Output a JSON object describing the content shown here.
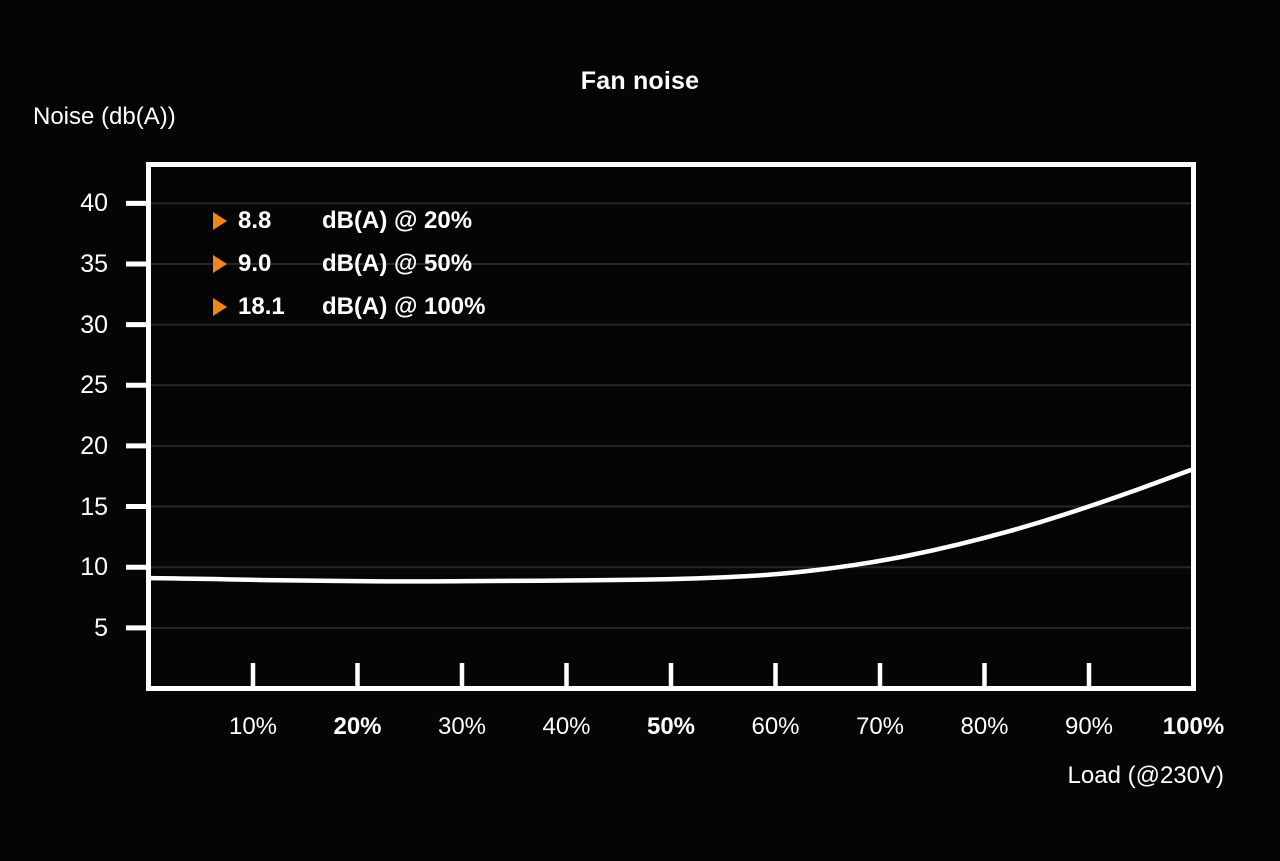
{
  "chart_title": "Fan noise",
  "y_axis_title": "Noise (db(A))",
  "x_axis_title": "Load (@230V)",
  "legend": {
    "items": [
      {
        "marker": "triangle-right-icon",
        "value": "8.8",
        "unit": "dB(A) @ 20%"
      },
      {
        "marker": "triangle-right-icon",
        "value": "9.0",
        "unit": "dB(A) @ 50%"
      },
      {
        "marker": "triangle-right-icon",
        "value": "18.1",
        "unit": "dB(A) @ 100%"
      }
    ]
  },
  "colors": {
    "background": "#050505",
    "foreground": "#ffffff",
    "accent_orange": "#f0861e",
    "gridline": "#262626"
  },
  "chart_data": {
    "type": "line",
    "title": "Fan noise",
    "xlabel": "Load (@230V)",
    "ylabel": "Noise (db(A))",
    "xlim": [
      0,
      100
    ],
    "ylim": [
      0,
      43.2
    ],
    "grid": true,
    "legend_position": "top-left-inside",
    "y_ticks": [
      {
        "value": 5,
        "label": "5"
      },
      {
        "value": 10,
        "label": "10"
      },
      {
        "value": 15,
        "label": "15"
      },
      {
        "value": 20,
        "label": "20"
      },
      {
        "value": 25,
        "label": "25"
      },
      {
        "value": 30,
        "label": "30"
      },
      {
        "value": 35,
        "label": "35"
      },
      {
        "value": 40,
        "label": "40"
      }
    ],
    "x_ticks": [
      {
        "value": 10,
        "label": "10%",
        "bold": false,
        "tick_mark": true
      },
      {
        "value": 20,
        "label": "20%",
        "bold": true,
        "tick_mark": true
      },
      {
        "value": 30,
        "label": "30%",
        "bold": false,
        "tick_mark": true
      },
      {
        "value": 40,
        "label": "40%",
        "bold": false,
        "tick_mark": true
      },
      {
        "value": 50,
        "label": "50%",
        "bold": true,
        "tick_mark": true
      },
      {
        "value": 60,
        "label": "60%",
        "bold": false,
        "tick_mark": true
      },
      {
        "value": 70,
        "label": "70%",
        "bold": false,
        "tick_mark": true
      },
      {
        "value": 80,
        "label": "80%",
        "bold": false,
        "tick_mark": true
      },
      {
        "value": 90,
        "label": "90%",
        "bold": false,
        "tick_mark": true
      },
      {
        "value": 100,
        "label": "100%",
        "bold": true,
        "tick_mark": false
      }
    ],
    "series": [
      {
        "name": "Fan noise dB(A) vs load",
        "x": [
          0,
          5,
          10,
          15,
          20,
          25,
          30,
          35,
          40,
          45,
          50,
          55,
          60,
          65,
          70,
          75,
          80,
          85,
          90,
          95,
          100
        ],
        "y": [
          9.1,
          9.05,
          8.95,
          8.9,
          8.85,
          8.82,
          8.85,
          8.87,
          8.9,
          8.95,
          9.0,
          9.15,
          9.4,
          9.85,
          10.5,
          11.35,
          12.4,
          13.6,
          15.0,
          16.5,
          18.1
        ]
      }
    ],
    "annotations": [
      "8.8 dB(A) @ 20%",
      "9.0 dB(A) @ 50%",
      "18.1 dB(A) @ 100%"
    ]
  }
}
